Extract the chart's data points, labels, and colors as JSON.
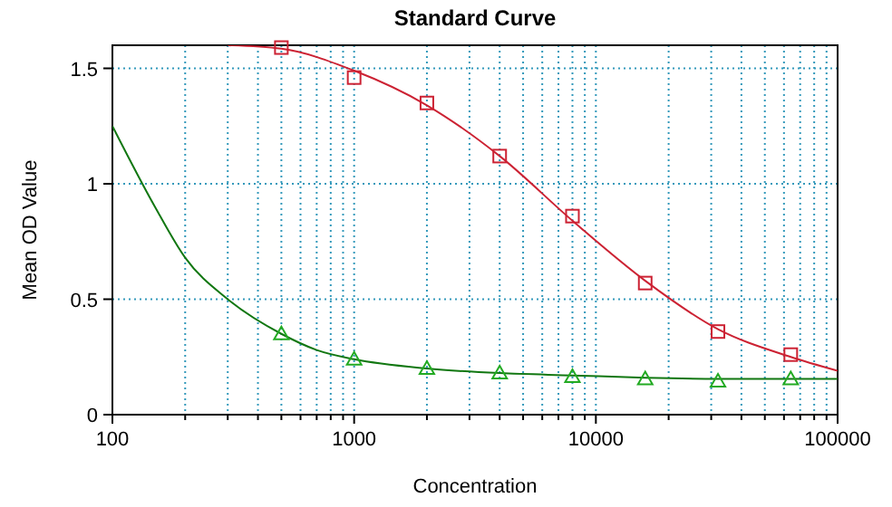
{
  "chart_data": {
    "type": "scatter",
    "title": "Standard Curve",
    "xlabel": "Concentration",
    "ylabel": "Mean OD Value",
    "log": "x",
    "xlim": [
      100,
      100000
    ],
    "ylim": [
      0,
      1.6
    ],
    "xticks": [
      100,
      {
        "value": 200,
        "label": null
      },
      {
        "value": 300,
        "label": null
      },
      {
        "value": 400,
        "label": null
      },
      {
        "value": 500,
        "label": null
      },
      {
        "value": 600,
        "label": null
      },
      {
        "value": 700,
        "label": null
      },
      {
        "value": 800,
        "label": null
      },
      {
        "value": 900,
        "label": null
      },
      1000,
      {
        "value": 2000,
        "label": null
      },
      {
        "value": 3000,
        "label": null
      },
      {
        "value": 4000,
        "label": null
      },
      {
        "value": 5000,
        "label": null
      },
      {
        "value": 6000,
        "label": null
      },
      {
        "value": 7000,
        "label": null
      },
      {
        "value": 8000,
        "label": null
      },
      {
        "value": 9000,
        "label": null
      },
      10000,
      {
        "value": 20000,
        "label": null
      },
      {
        "value": 30000,
        "label": null
      },
      {
        "value": 40000,
        "label": null
      },
      {
        "value": 50000,
        "label": null
      },
      {
        "value": 60000,
        "label": null
      },
      {
        "value": 70000,
        "label": null
      },
      {
        "value": 80000,
        "label": null
      },
      {
        "value": 90000,
        "label": null
      },
      100000
    ],
    "yticks": [
      0,
      0.5,
      1,
      1.5
    ],
    "grid": true,
    "series": [
      {
        "type": "line",
        "color": "#cc2233",
        "marker": "none",
        "x": [
          300,
          500,
          1000,
          2000,
          4000,
          8000,
          16000,
          32000,
          64000,
          100000
        ],
        "values": [
          1.6,
          1.585,
          1.49,
          1.34,
          1.12,
          0.84,
          0.58,
          0.37,
          0.25,
          0.19
        ]
      },
      {
        "type": "line",
        "color": "#117711",
        "marker": "none",
        "x": [
          100,
          150,
          200,
          300,
          500,
          700,
          1000,
          2000,
          4000,
          8000,
          16000,
          32000,
          100000
        ],
        "values": [
          1.25,
          0.9,
          0.68,
          0.5,
          0.35,
          0.28,
          0.24,
          0.2,
          0.18,
          0.17,
          0.16,
          0.155,
          0.155
        ]
      },
      {
        "color": "#cc2233",
        "marker": "square",
        "x": [
          500,
          1000,
          2000,
          4000,
          8000,
          16000,
          32000,
          64000
        ],
        "values": [
          1.59,
          1.46,
          1.35,
          1.12,
          0.86,
          0.57,
          0.36,
          0.26
        ]
      },
      {
        "color": "#22aa22",
        "marker": "triangle",
        "x": [
          500,
          1000,
          2000,
          4000,
          8000,
          16000,
          32000,
          64000
        ],
        "values": [
          0.35,
          0.24,
          0.2,
          0.18,
          0.165,
          0.155,
          0.145,
          0.155
        ]
      }
    ]
  }
}
